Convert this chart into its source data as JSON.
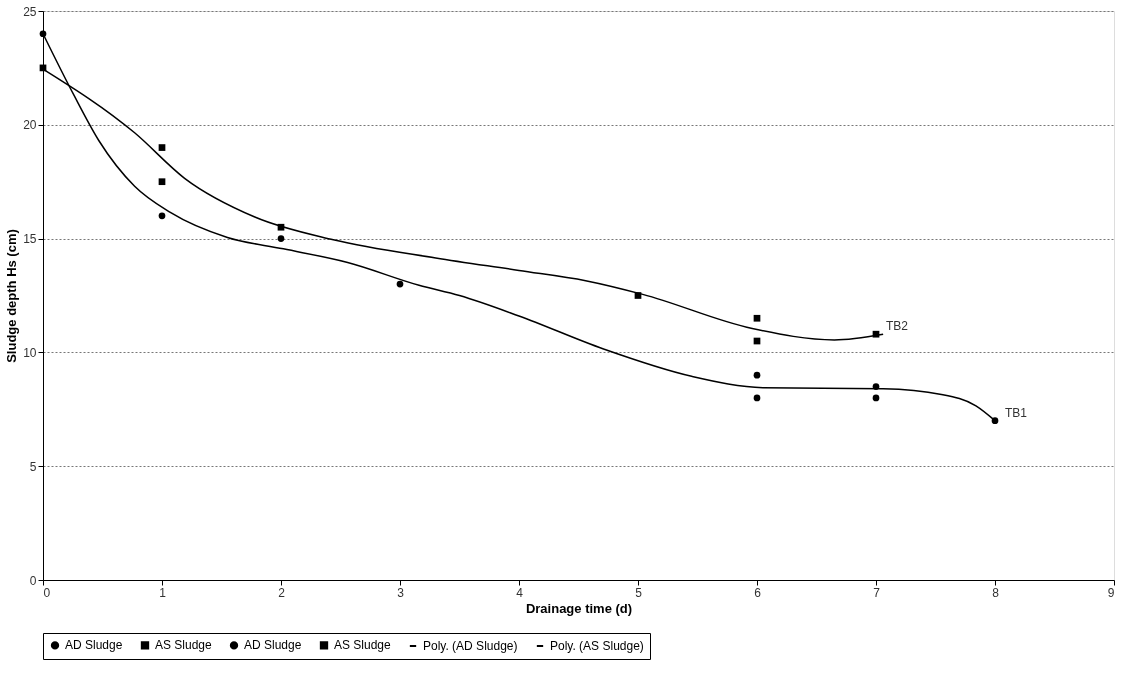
{
  "chart_data": {
    "type": "scatter",
    "xlabel": "Drainage time (d)",
    "ylabel": "Sludge depth Hs (cm)",
    "xlim": [
      0,
      9
    ],
    "xticks": [
      0,
      1,
      2,
      3,
      4,
      5,
      6,
      7,
      8,
      9
    ],
    "ylim": [
      0,
      25
    ],
    "yticks": [
      0,
      5,
      10,
      15,
      20,
      25
    ],
    "grid": "y",
    "legend": "bottom",
    "series": [
      {
        "name": "AD Sludge",
        "marker": "circle",
        "color": "#000000",
        "x": [
          0,
          1,
          2,
          3,
          6,
          7,
          8
        ],
        "values": [
          24,
          16,
          15,
          13,
          9,
          8.5,
          7
        ]
      },
      {
        "name": "AS Sludge",
        "marker": "square",
        "color": "#000000",
        "x": [
          0,
          1,
          2,
          5,
          6,
          7
        ],
        "values": [
          22.5,
          19,
          15.5,
          12.5,
          11.5,
          10.8
        ]
      },
      {
        "name": "AD Sludge",
        "marker": "circle",
        "color": "#000000",
        "x": [
          6,
          7
        ],
        "values": [
          8,
          8
        ]
      },
      {
        "name": "AS Sludge",
        "marker": "square",
        "color": "#000000",
        "x": [
          1,
          6
        ],
        "values": [
          17.5,
          10.5
        ]
      },
      {
        "name": "Poly. (AD Sludge)",
        "type": "line",
        "marker": "none",
        "line_style": "solid",
        "color": "#000000",
        "x": [
          0,
          0.26,
          0.47,
          0.77,
          1.07,
          1.55,
          2.02,
          2.56,
          3.16,
          3.5,
          4,
          4.71,
          5.45,
          6.05,
          7.06,
          7.55,
          7.84,
          8
        ],
        "values": [
          24,
          21.3,
          19.3,
          17.3,
          16.15,
          15.05,
          14.55,
          13.95,
          12.95,
          12.5,
          11.6,
          10.15,
          8.95,
          8.45,
          8.4,
          8.15,
          7.65,
          7
        ]
      },
      {
        "name": "Poly. (AS Sludge)",
        "type": "line",
        "marker": "none",
        "line_style": "solid",
        "color": "#000000",
        "x": [
          0,
          0.77,
          1.19,
          1.78,
          2.44,
          3.3,
          4,
          4.56,
          5.04,
          5.96,
          6.65,
          7.06
        ],
        "values": [
          22.45,
          19.65,
          17.65,
          15.95,
          14.95,
          14.15,
          13.6,
          13.15,
          12.55,
          11.05,
          10.55,
          10.8
        ]
      }
    ],
    "annotations": [
      {
        "text": "TB2",
        "x": 7,
        "y": 10.8
      },
      {
        "text": "TB1",
        "x": 8,
        "y": 7
      }
    ]
  }
}
